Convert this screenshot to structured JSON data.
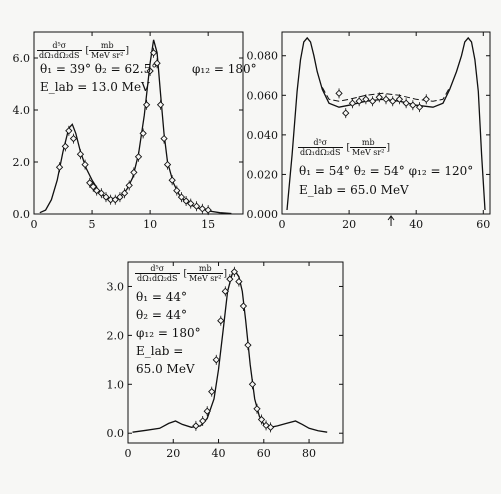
{
  "chart_data": [
    {
      "type": "line",
      "xlim": [
        0,
        18
      ],
      "ylim": [
        0,
        7.0
      ],
      "xticks": [
        0,
        5,
        10,
        15
      ],
      "yticks": [
        0.0,
        2.0,
        4.0,
        6.0
      ],
      "ytick_labels": [
        "0.0",
        "2.0",
        "4.0",
        "6.0"
      ],
      "grid": false,
      "annotation": {
        "frac_num": "d⁵σ",
        "frac_den": "dΩ₁dΩ₂dS",
        "unit_num": "mb",
        "unit_den": "MeV sr²",
        "angles": "θ₁ = 39°  θ₂ = 62.5°",
        "phi": "φ₁₂ = 180°",
        "energy": "E_lab = 13.0 MeV"
      },
      "series": [
        {
          "style": "solid-theory",
          "x": [
            0.5,
            1.0,
            1.5,
            2.0,
            2.5,
            3.0,
            3.3,
            3.6,
            4.0,
            4.5,
            5.0,
            5.5,
            6.0,
            6.5,
            7.0,
            7.5,
            8.0,
            8.5,
            9.0,
            9.5,
            10.0,
            10.3,
            10.6,
            10.9,
            11.2,
            11.5,
            12.0,
            12.5,
            13.0,
            13.5,
            14.0,
            15.0,
            16.0,
            17.0
          ],
          "y": [
            0.05,
            0.15,
            0.55,
            1.3,
            2.4,
            3.3,
            3.45,
            3.1,
            2.4,
            1.75,
            1.3,
            0.95,
            0.7,
            0.6,
            0.6,
            0.7,
            0.95,
            1.4,
            2.3,
            3.8,
            5.8,
            6.7,
            6.2,
            4.6,
            3.1,
            2.0,
            1.2,
            0.75,
            0.5,
            0.35,
            0.25,
            0.12,
            0.05,
            0.02
          ]
        },
        {
          "style": "experimental-points",
          "x": [
            2.2,
            2.7,
            3.0,
            3.4,
            4.0,
            4.4,
            4.8,
            5.1,
            5.4,
            5.8,
            6.2,
            6.6,
            7.0,
            7.4,
            7.8,
            8.2,
            8.6,
            9.0,
            9.4,
            9.7,
            10.0,
            10.3,
            10.6,
            10.9,
            11.2,
            11.5,
            11.9,
            12.3,
            12.7,
            13.1,
            13.5,
            14.0,
            14.5,
            15.0
          ],
          "y": [
            1.8,
            2.6,
            3.2,
            2.9,
            2.3,
            1.9,
            1.2,
            1.05,
            0.9,
            0.8,
            0.65,
            0.55,
            0.55,
            0.65,
            0.8,
            1.1,
            1.6,
            2.2,
            3.1,
            4.2,
            5.5,
            6.2,
            5.8,
            4.2,
            2.9,
            1.9,
            1.3,
            0.9,
            0.65,
            0.5,
            0.4,
            0.3,
            0.2,
            0.15
          ]
        }
      ]
    },
    {
      "type": "line",
      "xlim": [
        0,
        62
      ],
      "ylim": [
        0.0,
        0.092
      ],
      "xticks": [
        0,
        20,
        40,
        60
      ],
      "yticks": [
        0.0,
        0.02,
        0.04,
        0.06,
        0.08
      ],
      "ytick_labels": [
        "0.000",
        "0.020",
        "0.040",
        "0.060",
        "0.080"
      ],
      "grid": false,
      "marker_x": 32.5,
      "annotation": {
        "frac_num": "d⁵σ",
        "frac_den": "dΩ₁dΩ₂dS",
        "unit_num": "mb",
        "unit_den": "MeV sr²",
        "angles": "θ₁ = 54°  θ₂ = 54°  φ₁₂ = 120°",
        "energy": "E_lab = 65.0 MeV"
      },
      "series": [
        {
          "style": "solid-theory",
          "x": [
            1.5,
            3,
            4.5,
            5.5,
            6.5,
            7.5,
            8.5,
            9.5,
            10.5,
            12,
            14,
            17,
            20,
            25,
            30,
            35,
            40,
            45,
            48,
            50,
            52,
            53.5,
            54.5,
            55.5,
            56.5,
            57.5,
            58.5,
            59.5,
            60.5
          ],
          "y": [
            0.002,
            0.03,
            0.062,
            0.078,
            0.087,
            0.089,
            0.087,
            0.08,
            0.072,
            0.063,
            0.056,
            0.054,
            0.055,
            0.057,
            0.058,
            0.057,
            0.055,
            0.054,
            0.056,
            0.063,
            0.072,
            0.08,
            0.087,
            0.089,
            0.087,
            0.078,
            0.062,
            0.03,
            0.002
          ]
        },
        {
          "style": "dashed-theory",
          "x": [
            12,
            14,
            17,
            20,
            25,
            30,
            35,
            40,
            45,
            48,
            50
          ],
          "y": [
            0.064,
            0.058,
            0.057,
            0.058,
            0.06,
            0.061,
            0.06,
            0.058,
            0.057,
            0.058,
            0.064
          ]
        },
        {
          "style": "experimental-points",
          "x": [
            17,
            19,
            21,
            23,
            25,
            27,
            29,
            31,
            33,
            35,
            37,
            39,
            41,
            43
          ],
          "y": [
            0.061,
            0.051,
            0.056,
            0.057,
            0.058,
            0.057,
            0.059,
            0.058,
            0.057,
            0.058,
            0.056,
            0.055,
            0.054,
            0.058
          ]
        }
      ]
    },
    {
      "type": "line",
      "xlim": [
        0,
        95
      ],
      "ylim": [
        -0.2,
        3.5
      ],
      "xticks": [
        0,
        20,
        40,
        60,
        80
      ],
      "yticks": [
        0.0,
        1.0,
        2.0,
        3.0
      ],
      "ytick_labels": [
        "0.0",
        "1.0",
        "2.0",
        "3.0"
      ],
      "grid": false,
      "annotation": {
        "frac_num": "d⁵σ",
        "frac_den": "dΩ₁dΩ₂dS",
        "unit_num": "mb",
        "unit_den": "MeV sr²",
        "theta1": "θ₁ = 44°",
        "theta2": "θ₂ = 44°",
        "phi": "φ₁₂ = 180°",
        "elab": "E_lab =",
        "energy": "65.0 MeV"
      },
      "series": [
        {
          "style": "solid-theory",
          "x": [
            2,
            8,
            14,
            18,
            21,
            24,
            28,
            32,
            35,
            38,
            40,
            42,
            44,
            46,
            47.5,
            49,
            50.5,
            52,
            54,
            56,
            58,
            60,
            63,
            66,
            70,
            74,
            77,
            80,
            84,
            88
          ],
          "y": [
            0.02,
            0.06,
            0.1,
            0.2,
            0.25,
            0.18,
            0.12,
            0.15,
            0.3,
            0.7,
            1.3,
            2.1,
            2.9,
            3.25,
            3.3,
            3.2,
            2.9,
            2.3,
            1.4,
            0.7,
            0.35,
            0.18,
            0.12,
            0.15,
            0.2,
            0.25,
            0.18,
            0.1,
            0.05,
            0.02
          ]
        },
        {
          "style": "experimental-points",
          "x": [
            30,
            33,
            35,
            37,
            39,
            41,
            43,
            45,
            47,
            49,
            51,
            53,
            55,
            57,
            59,
            61,
            63
          ],
          "y": [
            0.15,
            0.25,
            0.45,
            0.85,
            1.5,
            2.3,
            2.9,
            3.15,
            3.3,
            3.1,
            2.6,
            1.8,
            1.0,
            0.5,
            0.28,
            0.16,
            0.12
          ]
        }
      ]
    }
  ]
}
